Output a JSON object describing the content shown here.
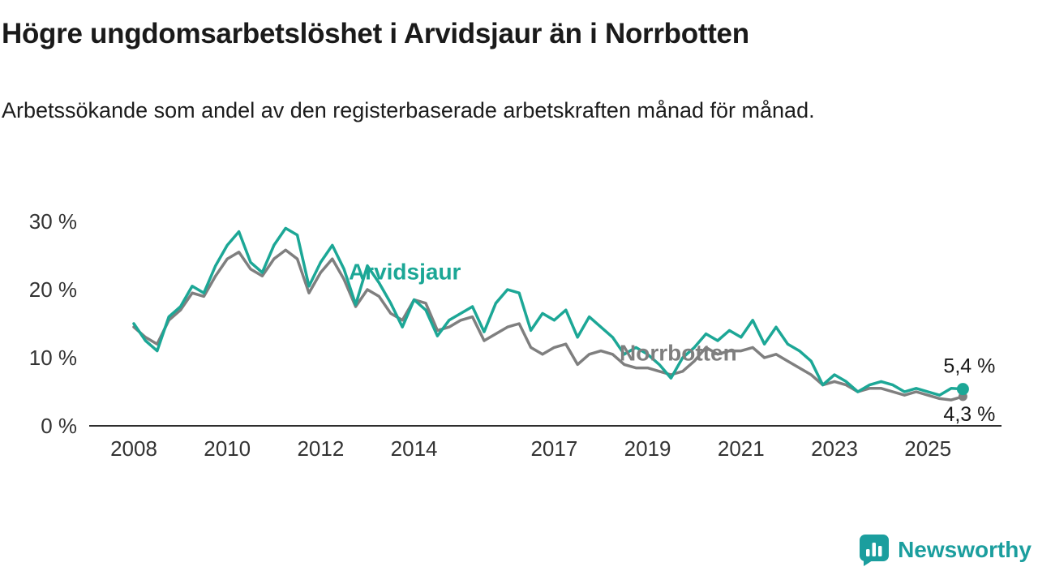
{
  "page": {
    "title": "Högre ungdomsarbetslöshet i Arvidsjaur än i Norrbotten",
    "subtitle": "Arbetssökande som andel av den registerbaserade arbetskraften månad för månad.",
    "brand": "Newsworthy"
  },
  "colors": {
    "arvidsjaur": "#1ca796",
    "norrbotten": "#7f7f7f",
    "axis_text": "#333333",
    "value_text": "#1a1a1a",
    "brand_teal": "#1b9e9e"
  },
  "chart_data": {
    "type": "line",
    "title": "Högre ungdomsarbetslöshet i Arvidsjaur än i Norrbotten",
    "subtitle": "Arbetssökande som andel av den registerbaserade arbetskraften månad för månad.",
    "x_unit": "year",
    "y_unit": "%",
    "x_start": 2008.0,
    "x_step": 0.25,
    "ylim": [
      0,
      30
    ],
    "grid": false,
    "legend": "inline-labels",
    "xticks": [
      "2008",
      "2010",
      "2012",
      "2014",
      "2017",
      "2019",
      "2021",
      "2023",
      "2025"
    ],
    "yticks": [
      {
        "value": 30,
        "label": "30 %"
      },
      {
        "value": 20,
        "label": "20 %"
      },
      {
        "value": 10,
        "label": "10 %"
      },
      {
        "value": 0,
        "label": "0 %"
      }
    ],
    "series": [
      {
        "name": "Arvidsjaur",
        "color": "#1ca796",
        "end_label": "5,4 %",
        "values": [
          15.0,
          12.5,
          11.0,
          16.0,
          17.5,
          20.5,
          19.5,
          23.5,
          26.5,
          28.5,
          24.0,
          22.5,
          26.5,
          29.0,
          28.0,
          20.5,
          24.0,
          26.5,
          23.0,
          17.8,
          23.5,
          21.0,
          18.0,
          14.5,
          18.5,
          17.0,
          13.2,
          15.5,
          16.5,
          17.5,
          13.8,
          18.0,
          20.0,
          19.5,
          14.0,
          16.5,
          15.5,
          17.0,
          13.0,
          16.0,
          14.5,
          13.0,
          10.5,
          11.5,
          10.5,
          9.0,
          7.0,
          10.0,
          11.5,
          13.5,
          12.5,
          14.0,
          13.0,
          15.5,
          12.0,
          14.5,
          12.0,
          11.0,
          9.5,
          6.0,
          7.5,
          6.5,
          5.0,
          6.0,
          6.5,
          6.0,
          5.0,
          5.5,
          5.0,
          4.5,
          5.5,
          5.4
        ]
      },
      {
        "name": "Norrbotten",
        "color": "#7f7f7f",
        "end_label": "4,3 %",
        "values": [
          14.5,
          13.0,
          12.0,
          15.5,
          17.0,
          19.5,
          19.0,
          22.0,
          24.5,
          25.5,
          23.0,
          22.0,
          24.5,
          25.8,
          24.5,
          19.5,
          22.5,
          24.5,
          21.5,
          17.5,
          20.0,
          19.0,
          16.5,
          15.5,
          18.5,
          18.0,
          14.0,
          14.5,
          15.5,
          16.0,
          12.5,
          13.5,
          14.5,
          15.0,
          11.5,
          10.5,
          11.5,
          12.0,
          9.0,
          10.5,
          11.0,
          10.5,
          9.0,
          8.5,
          8.5,
          8.0,
          7.5,
          8.0,
          9.5,
          11.5,
          10.5,
          11.0,
          11.0,
          11.5,
          10.0,
          10.5,
          9.5,
          8.5,
          7.5,
          6.0,
          6.5,
          6.0,
          5.0,
          5.5,
          5.5,
          5.0,
          4.5,
          5.0,
          4.5,
          4.0,
          3.8,
          4.3
        ]
      }
    ],
    "series_labels": [
      {
        "text": "Arvidsjaur",
        "x": 2012.6,
        "y": 21.5,
        "color": "#1ca796"
      },
      {
        "text": "Norrbotten",
        "x": 2018.4,
        "y": 9.6,
        "color": "#7f7f7f"
      }
    ]
  }
}
